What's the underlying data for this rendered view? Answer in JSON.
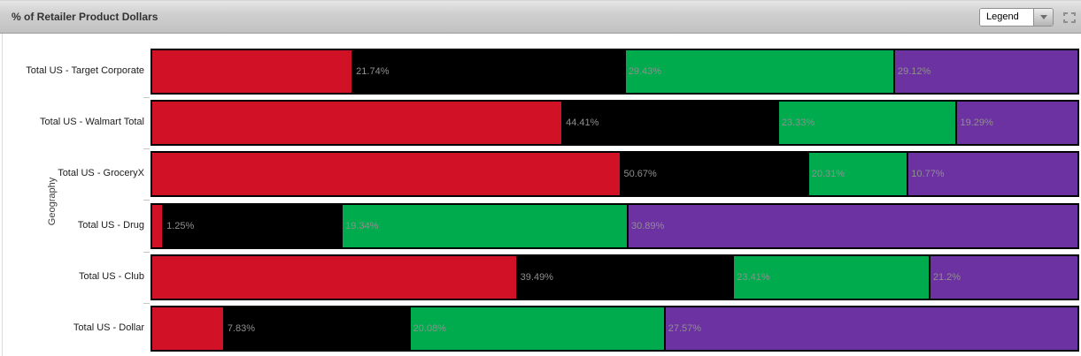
{
  "header": {
    "title": "% of Retailer Product Dollars",
    "legend_button": "Legend",
    "icons": {
      "legend_dropdown": "chevron-down-icon",
      "top_right": "maximize-icon"
    }
  },
  "chart_data": {
    "type": "bar",
    "stacked": true,
    "orientation": "horizontal",
    "title": "% of Retailer Product Dollars",
    "ylabel": "Geography",
    "xlim": [
      0,
      100
    ],
    "grid": false,
    "legend": "collapsed (Legend dropdown, closed)",
    "value_label_position": "at end of each segment; last segment unlabeled",
    "categories": [
      "Total US - Target Corporate",
      "Total US - Walmart Total",
      "Total US - GroceryX",
      "Total US - Drug",
      "Total US - Club",
      "Total US - Dollar"
    ],
    "series": [
      {
        "name": "red",
        "color": "#D01126",
        "values": [
          21.74,
          44.41,
          50.67,
          1.25,
          39.49,
          7.83
        ],
        "labels": [
          "21.74%",
          "44.41%",
          "50.67%",
          "1.25%",
          "39.49%",
          "7.83%"
        ]
      },
      {
        "name": "black",
        "color": "#000000",
        "values": [
          29.43,
          23.33,
          20.31,
          19.34,
          23.41,
          20.08
        ],
        "labels": [
          "29.43%",
          "23.33%",
          "20.31%",
          "19.34%",
          "23.41%",
          "20.08%"
        ]
      },
      {
        "name": "green",
        "color": "#00AB4E",
        "values": [
          29.12,
          19.29,
          10.77,
          30.89,
          21.2,
          27.57
        ],
        "labels": [
          "29.12%",
          "19.29%",
          "10.77%",
          "30.89%",
          "21.2%",
          "27.57%"
        ]
      },
      {
        "name": "purple",
        "color": "#6C32A1",
        "values": [
          19.71,
          12.97,
          18.25,
          48.52,
          15.9,
          44.52
        ],
        "labels": [
          "",
          "",
          "",
          "",
          "",
          ""
        ]
      }
    ]
  }
}
